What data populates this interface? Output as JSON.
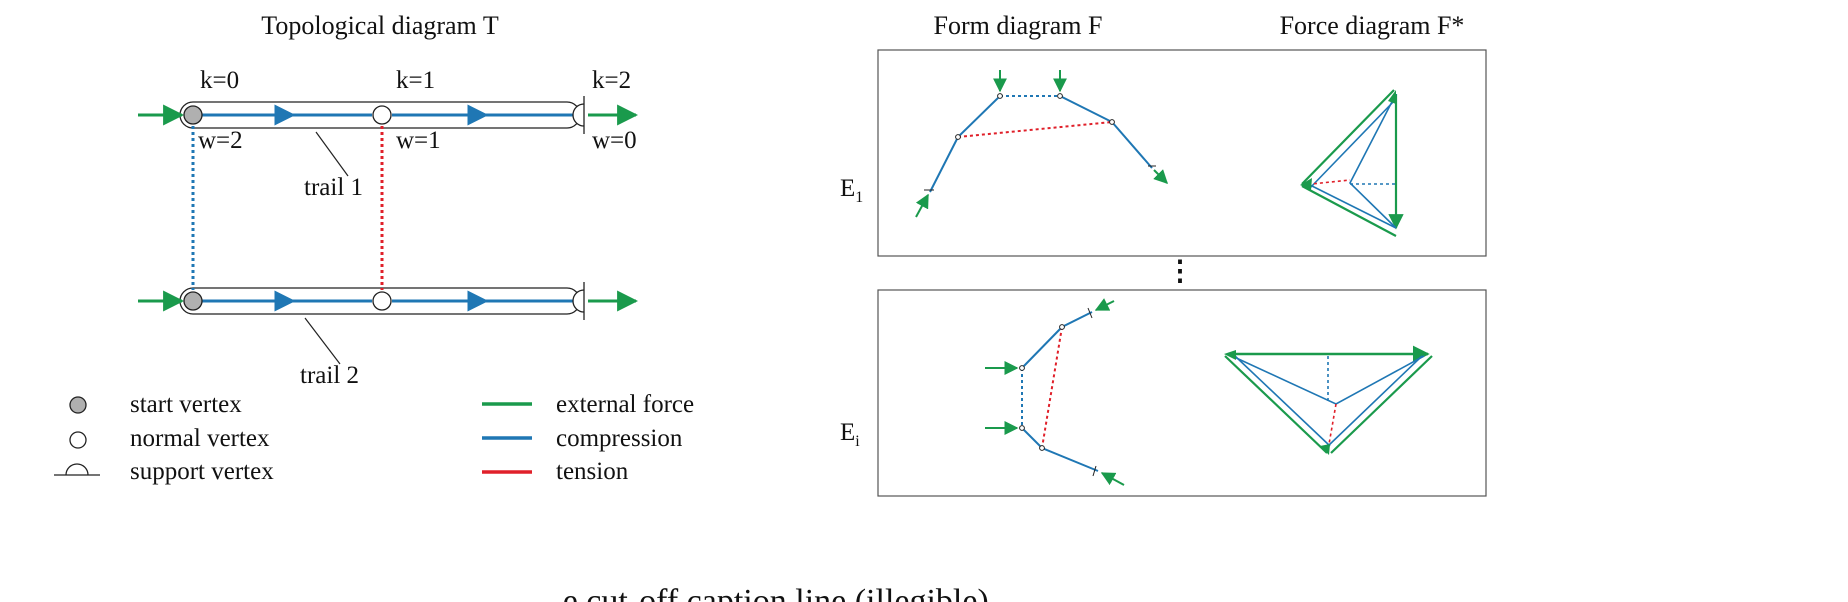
{
  "titles": {
    "topological": "Topological diagram T",
    "form": "Form diagram F",
    "force": "Force diagram F*"
  },
  "vertex_labels": {
    "k0": "k=0",
    "k1": "k=1",
    "k2": "k=2",
    "w2": "w=2",
    "w1": "w=1",
    "w0": "w=0"
  },
  "trail_labels": {
    "trail1": "trail 1",
    "trail2": "trail 2"
  },
  "legend": {
    "start_vertex": "start vertex",
    "normal_vertex": "normal vertex",
    "support_vertex": "support vertex",
    "external_force": "external force",
    "compression": "compression",
    "tension": "tension"
  },
  "panels": {
    "e1": {
      "base": "E",
      "sub": "1"
    },
    "ei": {
      "base": "E",
      "sub": "i"
    },
    "ellipsis": "⋮"
  },
  "caption_fragment": "...e cut-off caption line (illegible) ...",
  "colors": {
    "external_force": "#1a9a4c",
    "compression": "#1f77b4",
    "tension": "#e0202a",
    "start_vertex_fill": "#b0b0b0",
    "outline": "#222222"
  }
}
